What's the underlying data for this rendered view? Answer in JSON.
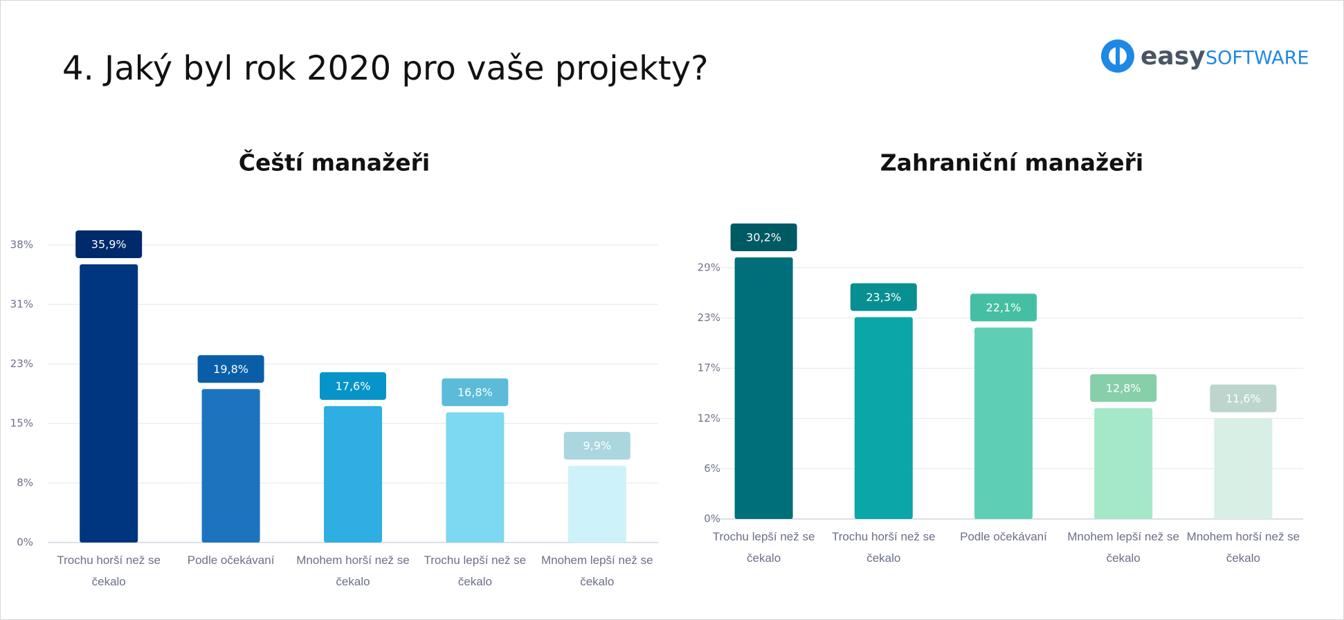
{
  "header": {
    "title": "4. Jaký byl rok 2020 pro vaše projekty?",
    "logo": [
      "easy",
      "SOFTWARE"
    ]
  },
  "chart_data": [
    {
      "type": "bar",
      "title": "Čeští manažeři",
      "categories": [
        "Trochu horší než se čekalo",
        "Podle očekávaní",
        "Mnohem horší než se čekalo",
        "Trochu lepší než se čekalo",
        "Mnohem lepší než se čekalo"
      ],
      "values": [
        35.9,
        19.8,
        17.6,
        16.8,
        9.9
      ],
      "value_labels": [
        "35,9%",
        "19,8%",
        "17,6%",
        "16,8%",
        "9,9%"
      ],
      "colors": [
        "#003580",
        "#1c74bf",
        "#2eaee3",
        "#7dd8f1",
        "#cdf2f9"
      ],
      "label_colors": [
        "#002a6b",
        "#0a5ea8",
        "#0794c9",
        "#5bbbd8",
        "#a9d6df"
      ],
      "ylim": [
        0,
        38.4
      ],
      "yticks": [
        {
          "value": 0,
          "label": "0%"
        },
        {
          "value": 7.68,
          "label": "8%"
        },
        {
          "value": 15.36,
          "label": "15%"
        },
        {
          "value": 23.04,
          "label": "23%"
        },
        {
          "value": 30.72,
          "label": "31%"
        },
        {
          "value": 38.4,
          "label": "38%"
        }
      ],
      "grid": true
    },
    {
      "type": "bar",
      "title": "Zahraniční manažeři",
      "categories": [
        "Trochu lepší než se čekalo",
        "Trochu horší než se čekalo",
        "Podle očekávaní",
        "Mnohem lepší než se čekalo",
        "Mnohem horší než se čekalo"
      ],
      "values": [
        30.2,
        23.3,
        22.1,
        12.8,
        11.6
      ],
      "value_labels": [
        "30,2%",
        "23,3%",
        "22,1%",
        "12,8%",
        "11,6%"
      ],
      "colors": [
        "#006f7a",
        "#0aa6a8",
        "#5ecfb5",
        "#a5e8c8",
        "#d7efe4"
      ],
      "label_colors": [
        "#005a63",
        "#088f91",
        "#45bfa3",
        "#86cfa9",
        "#bcd6ce"
      ],
      "ylim": [
        0,
        29
      ],
      "yticks": [
        {
          "value": 0,
          "label": "0%"
        },
        {
          "value": 5.8,
          "label": "6%"
        },
        {
          "value": 11.6,
          "label": "12%"
        },
        {
          "value": 17.4,
          "label": "17%"
        },
        {
          "value": 23.2,
          "label": "23%"
        },
        {
          "value": 29,
          "label": "29%"
        }
      ],
      "grid": true
    }
  ]
}
